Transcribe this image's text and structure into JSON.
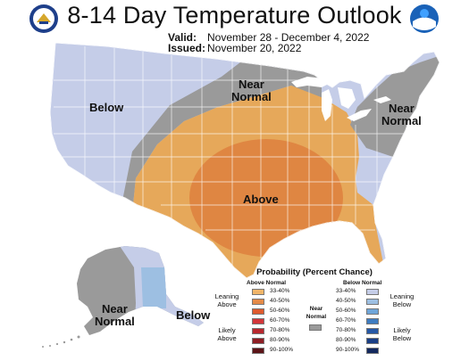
{
  "header": {
    "title": "8-14 Day Temperature Outlook",
    "valid_label": "Valid:",
    "valid_value": "November 28 - December 4, 2022",
    "issued_label": "Issued:",
    "issued_value": "November 20, 2022"
  },
  "logos": {
    "left": "doc-seal-icon",
    "right": "noaa-logo-icon"
  },
  "map": {
    "region_labels": {
      "west": "Below",
      "north_central_1": "Near",
      "north_central_2": "Normal",
      "northeast_1": "Near",
      "northeast_2": "Normal",
      "south_central": "Above",
      "alaska_west_1": "Near",
      "alaska_west_2": "Normal",
      "alaska_east": "Below"
    },
    "colors": {
      "below_33_40": "#c5cde8",
      "below_40_50": "#9dbfe2",
      "near_normal": "#9a9a9a",
      "above_33_40": "#e6a85a",
      "above_40_50": "#df8642",
      "land_outline": "#ffffff",
      "water": "#ffffff"
    }
  },
  "legend": {
    "title": "Probability (Percent Chance)",
    "above_head": "Above Normal",
    "below_head": "Below Normal",
    "near_label_1": "Near",
    "near_label_2": "Normal",
    "leaning_above_1": "Leaning",
    "leaning_above_2": "Above",
    "likely_above_1": "Likely",
    "likely_above_2": "Above",
    "leaning_below_1": "Leaning",
    "leaning_below_2": "Below",
    "likely_below_1": "Likely",
    "likely_below_2": "Below",
    "above_rows": [
      {
        "pct": "33-40%",
        "color": "#f0b56a"
      },
      {
        "pct": "40-50%",
        "color": "#e48a48"
      },
      {
        "pct": "50-60%",
        "color": "#dd5a2e"
      },
      {
        "pct": "60-70%",
        "color": "#d2363a"
      },
      {
        "pct": "70-80%",
        "color": "#b8282e"
      },
      {
        "pct": "80-90%",
        "color": "#8e1e24"
      },
      {
        "pct": "90-100%",
        "color": "#5c1418"
      }
    ],
    "below_rows": [
      {
        "pct": "33-40%",
        "color": "#c5cde8"
      },
      {
        "pct": "40-50%",
        "color": "#9dbfe2"
      },
      {
        "pct": "50-60%",
        "color": "#6fa5d8"
      },
      {
        "pct": "60-70%",
        "color": "#3f7cc0"
      },
      {
        "pct": "70-80%",
        "color": "#2658a6"
      },
      {
        "pct": "80-90%",
        "color": "#1a3f86"
      },
      {
        "pct": "90-100%",
        "color": "#13285e"
      }
    ],
    "near_color": "#9a9a9a"
  }
}
